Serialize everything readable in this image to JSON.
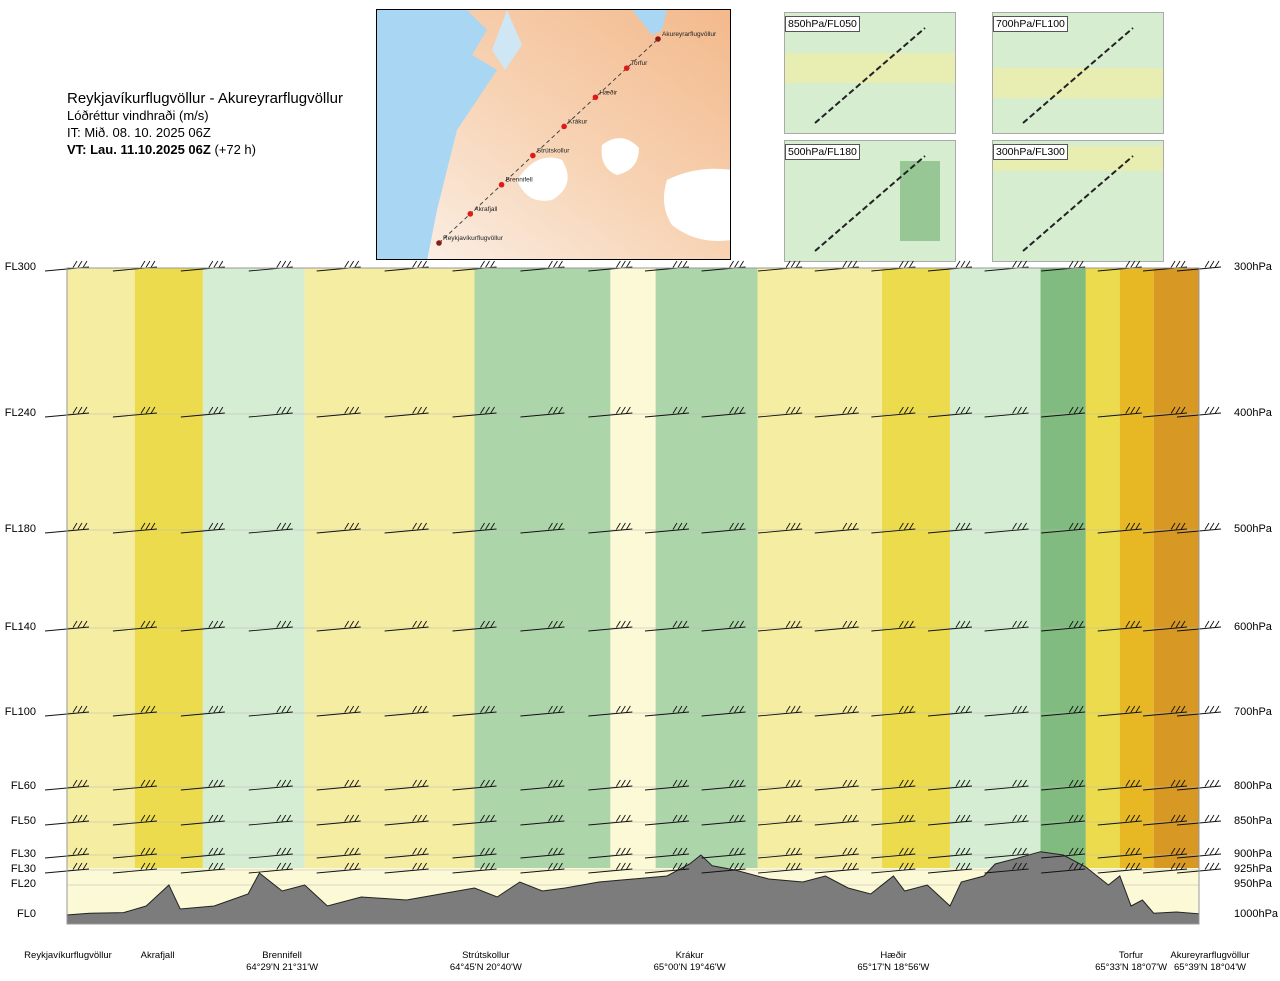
{
  "header": {
    "route_title": "Reykjavíkurflugvöllur - Akureyrarflugvöllur",
    "parameter": "Lóðréttur vindhraði (m/s)",
    "issue_time": "IT: Mið. 08. 10. 2025 06Z",
    "valid_time_bold": "VT: Lau. 11.10.2025 06Z",
    "valid_time_offset": "(+72 h)"
  },
  "map": {
    "waypoints": [
      "Akureyrarflugvöllur",
      "Torfur",
      "Hæðir",
      "Krákur",
      "Strútskollur",
      "Brennifell",
      "Akrafjall",
      "Reykjavíkurflugvöllur"
    ]
  },
  "minimaps": [
    {
      "label": "850hPa/FL050"
    },
    {
      "label": "700hPa/FL100"
    },
    {
      "label": "500hPa/FL180"
    },
    {
      "label": "300hPa/FL300"
    }
  ],
  "colors": {
    "strong_down": "#7ab77a",
    "down": "#a8d3a8",
    "weak_down": "#d3ecd2",
    "neutral_down": "#f2faeb",
    "neutral_up": "#fcf9d6",
    "weak_up": "#f4ec9e",
    "up": "#ebd944",
    "strong_up": "#e6b419",
    "very_strong_up": "#d6921a",
    "terrain": "#7c7c7c"
  },
  "chart_data": {
    "type": "heatmap",
    "title": "Lóðréttur vindhraði (m/s)",
    "xlabel": "",
    "ylabel": "",
    "flight_levels": [
      "FL300",
      "FL240",
      "FL180",
      "FL140",
      "FL100",
      "FL60",
      "FL50",
      "FL30",
      "FL30",
      "FL20",
      "FL0"
    ],
    "pressure_levels": [
      "300hPa",
      "400hPa",
      "500hPa",
      "600hPa",
      "700hPa",
      "800hPa",
      "850hPa",
      "900hPa",
      "925hPa",
      "950hPa",
      "1000hPa"
    ],
    "pressure_values": [
      300,
      400,
      500,
      600,
      700,
      800,
      850,
      900,
      925,
      950,
      1000
    ],
    "ylim": [
      1000,
      300
    ],
    "waypoints": [
      {
        "name": "Reykjavíkurflugvöllur",
        "coord": "",
        "pos": 0.0
      },
      {
        "name": "Akrafjall",
        "coord": "",
        "pos": 0.08
      },
      {
        "name": "Brennifell",
        "coord": "64°29'N 21°31'W",
        "pos": 0.19
      },
      {
        "name": "Strútskollur",
        "coord": "64°45'N 20°40'W",
        "pos": 0.37
      },
      {
        "name": "Krákur",
        "coord": "65°00'N 19°46'W",
        "pos": 0.55
      },
      {
        "name": "Hæðir",
        "coord": "65°17'N 18°56'W",
        "pos": 0.73
      },
      {
        "name": "Torfur",
        "coord": "65°33'N 18°07'W",
        "pos": 0.94
      },
      {
        "name": "Akureyrarflugvöllur",
        "coord": "65°39'N 18°04'W",
        "pos": 1.0
      }
    ],
    "wind_levels": [
      300,
      400,
      500,
      600,
      700,
      800,
      850,
      900,
      925
    ],
    "column_positions": [
      0.0,
      0.06,
      0.12,
      0.18,
      0.24,
      0.3,
      0.36,
      0.42,
      0.48,
      0.53,
      0.58,
      0.63,
      0.68,
      0.73,
      0.78,
      0.83,
      0.88,
      0.93,
      0.97,
      1.0
    ],
    "vertical_velocity_bands": [
      {
        "x_from": 0.0,
        "x_to": 0.06,
        "class": "weak_up"
      },
      {
        "x_from": 0.06,
        "x_to": 0.12,
        "class": "up"
      },
      {
        "x_from": 0.12,
        "x_to": 0.21,
        "class": "weak_down"
      },
      {
        "x_from": 0.21,
        "x_to": 0.36,
        "class": "weak_up"
      },
      {
        "x_from": 0.36,
        "x_to": 0.48,
        "class": "down"
      },
      {
        "x_from": 0.48,
        "x_to": 0.52,
        "class": "neutral_up"
      },
      {
        "x_from": 0.52,
        "x_to": 0.61,
        "class": "down"
      },
      {
        "x_from": 0.61,
        "x_to": 0.72,
        "class": "weak_up"
      },
      {
        "x_from": 0.72,
        "x_to": 0.78,
        "class": "up"
      },
      {
        "x_from": 0.78,
        "x_to": 0.86,
        "class": "weak_down"
      },
      {
        "x_from": 0.86,
        "x_to": 0.9,
        "class": "strong_down"
      },
      {
        "x_from": 0.9,
        "x_to": 0.93,
        "class": "up"
      },
      {
        "x_from": 0.93,
        "x_to": 0.96,
        "class": "strong_up"
      },
      {
        "x_from": 0.96,
        "x_to": 1.0,
        "class": "very_strong_up"
      }
    ],
    "terrain_profile": [
      [
        0.0,
        1000
      ],
      [
        0.02,
        997
      ],
      [
        0.05,
        996
      ],
      [
        0.07,
        985
      ],
      [
        0.09,
        950
      ],
      [
        0.1,
        990
      ],
      [
        0.13,
        985
      ],
      [
        0.16,
        965
      ],
      [
        0.17,
        930
      ],
      [
        0.19,
        960
      ],
      [
        0.21,
        950
      ],
      [
        0.23,
        985
      ],
      [
        0.26,
        970
      ],
      [
        0.3,
        975
      ],
      [
        0.33,
        965
      ],
      [
        0.36,
        955
      ],
      [
        0.38,
        970
      ],
      [
        0.4,
        945
      ],
      [
        0.42,
        960
      ],
      [
        0.44,
        955
      ],
      [
        0.47,
        945
      ],
      [
        0.5,
        940
      ],
      [
        0.53,
        935
      ],
      [
        0.55,
        915
      ],
      [
        0.56,
        900
      ],
      [
        0.57,
        918
      ],
      [
        0.59,
        925
      ],
      [
        0.62,
        940
      ],
      [
        0.65,
        945
      ],
      [
        0.67,
        935
      ],
      [
        0.69,
        955
      ],
      [
        0.71,
        965
      ],
      [
        0.73,
        935
      ],
      [
        0.74,
        960
      ],
      [
        0.76,
        950
      ],
      [
        0.78,
        985
      ],
      [
        0.79,
        945
      ],
      [
        0.81,
        935
      ],
      [
        0.82,
        915
      ],
      [
        0.84,
        905
      ],
      [
        0.86,
        895
      ],
      [
        0.88,
        900
      ],
      [
        0.9,
        920
      ],
      [
        0.92,
        950
      ],
      [
        0.93,
        935
      ],
      [
        0.94,
        985
      ],
      [
        0.95,
        975
      ],
      [
        0.96,
        997
      ],
      [
        0.98,
        995
      ],
      [
        1.0,
        998
      ]
    ]
  }
}
